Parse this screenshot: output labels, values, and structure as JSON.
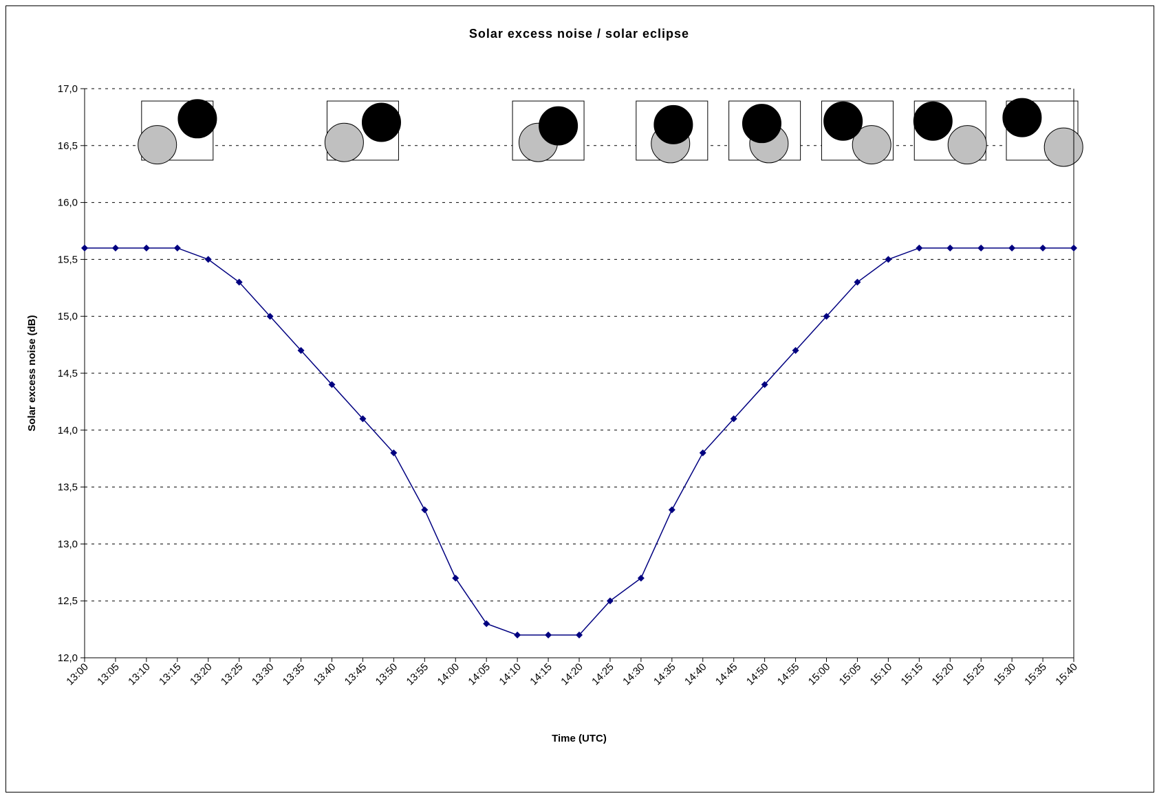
{
  "chart_data": {
    "type": "line",
    "title": "Solar excess noise / solar eclipse",
    "xlabel": "Time (UTC)",
    "ylabel": "Solar excess noise (dB)",
    "ylim": [
      12.0,
      17.0
    ],
    "ytick_step": 0.5,
    "ytick_labels": [
      "12,0",
      "12,5",
      "13,0",
      "13,5",
      "14,0",
      "14,5",
      "15,0",
      "15,5",
      "16,0",
      "16,5",
      "17,0"
    ],
    "grid": true,
    "legend": "none",
    "categories": [
      "13:00",
      "13:05",
      "13:10",
      "13:15",
      "13:20",
      "13:25",
      "13:30",
      "13:35",
      "13:40",
      "13:45",
      "13:50",
      "13:55",
      "14:00",
      "14:05",
      "14:10",
      "14:15",
      "14:20",
      "14:25",
      "14:30",
      "14:35",
      "14:40",
      "14:45",
      "14:50",
      "14:55",
      "15:00",
      "15:05",
      "15:10",
      "15:15",
      "15:20",
      "15:25",
      "15:30",
      "15:35",
      "15:40"
    ],
    "series": [
      {
        "values": [
          15.6,
          15.6,
          15.6,
          15.6,
          15.5,
          15.3,
          15.0,
          14.7,
          14.4,
          14.1,
          13.8,
          13.3,
          12.7,
          12.3,
          12.2,
          12.2,
          12.2,
          12.5,
          12.7,
          13.3,
          13.8,
          14.1,
          14.4,
          14.7,
          15.0,
          15.3,
          15.5,
          15.6,
          15.6,
          15.6,
          15.6,
          15.6,
          15.6
        ],
        "color": "#000080"
      }
    ],
    "eclipse_phase_icons": [
      {
        "time": "13:15",
        "sun_dx": -0.28,
        "sun_dy": 0.24,
        "moon_dx": 0.28,
        "moon_dy": -0.2
      },
      {
        "time": "13:45",
        "sun_dx": -0.26,
        "sun_dy": 0.2,
        "moon_dx": 0.26,
        "moon_dy": -0.14
      },
      {
        "time": "14:15",
        "sun_dx": -0.14,
        "sun_dy": 0.2,
        "moon_dx": 0.14,
        "moon_dy": -0.08
      },
      {
        "time": "14:35",
        "sun_dx": -0.02,
        "sun_dy": 0.22,
        "moon_dx": 0.02,
        "moon_dy": -0.1
      },
      {
        "time": "14:50",
        "sun_dx": 0.06,
        "sun_dy": 0.22,
        "moon_dx": -0.04,
        "moon_dy": -0.12
      },
      {
        "time": "15:05",
        "sun_dx": 0.2,
        "sun_dy": 0.24,
        "moon_dx": -0.2,
        "moon_dy": -0.16
      },
      {
        "time": "15:20",
        "sun_dx": 0.24,
        "sun_dy": 0.24,
        "moon_dx": -0.24,
        "moon_dy": -0.16
      },
      {
        "time": "15:40",
        "sun_dx": 0.3,
        "sun_dy": 0.28,
        "moon_dx": -0.28,
        "moon_dy": -0.22
      }
    ],
    "colors": {
      "sun": "#c0c0c0",
      "moon": "#000000",
      "line": "#000080",
      "marker": "#000080",
      "grid": "#000000"
    }
  }
}
